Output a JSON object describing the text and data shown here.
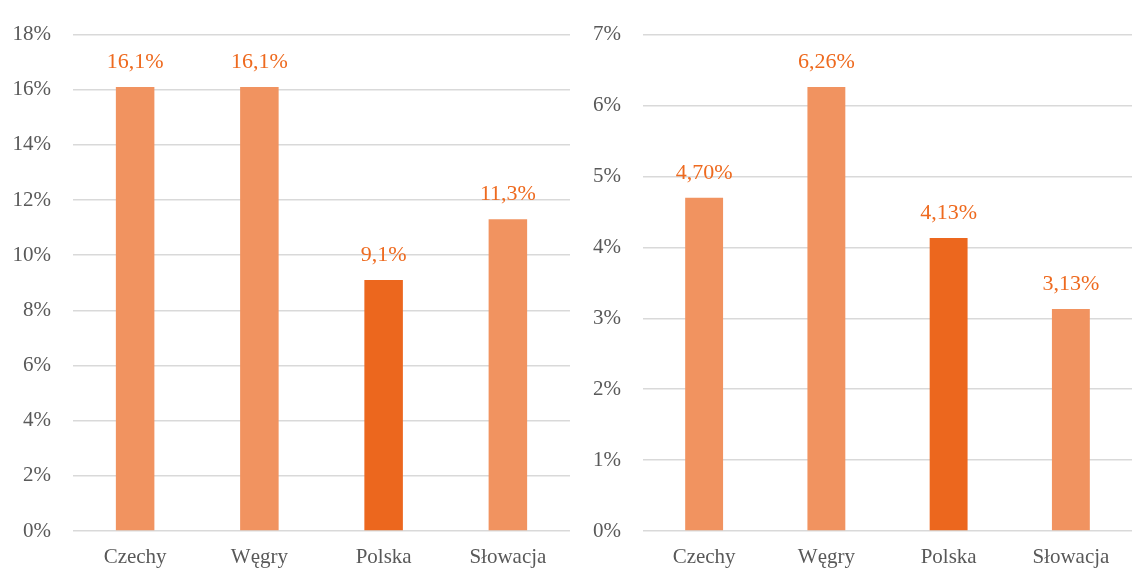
{
  "chart_data": [
    {
      "type": "bar",
      "categories": [
        "Czechy",
        "Węgry",
        "Polska",
        "Słowacja"
      ],
      "values": [
        16.1,
        16.1,
        9.1,
        11.3
      ],
      "colors": [
        "#f19360",
        "#f19360",
        "#ec671e",
        "#f19360"
      ],
      "value_labels": [
        "16,1%",
        "16,1%",
        "9,1%",
        "11,3%"
      ],
      "ylim": [
        0,
        18
      ],
      "yticks": [
        {
          "value": 0,
          "label": "0%"
        },
        {
          "value": 2,
          "label": "2%"
        },
        {
          "value": 4,
          "label": "4%"
        },
        {
          "value": 6,
          "label": "6%"
        },
        {
          "value": 8,
          "label": "8%"
        },
        {
          "value": 10,
          "label": "10%"
        },
        {
          "value": 12,
          "label": "12%"
        },
        {
          "value": 14,
          "label": "14%"
        },
        {
          "value": 16,
          "label": "16%"
        },
        {
          "value": 18,
          "label": "18%"
        }
      ],
      "grid": "y"
    },
    {
      "type": "bar",
      "categories": [
        "Czechy",
        "Węgry",
        "Polska",
        "Słowacja"
      ],
      "values": [
        4.7,
        6.26,
        4.13,
        3.13
      ],
      "colors": [
        "#f19360",
        "#f19360",
        "#ec671e",
        "#f19360"
      ],
      "value_labels": [
        "4,70%",
        "6,26%",
        "4,13%",
        "3,13%"
      ],
      "ylim": [
        0,
        7
      ],
      "yticks": [
        {
          "value": 0,
          "label": "0%"
        },
        {
          "value": 1,
          "label": "1%"
        },
        {
          "value": 2,
          "label": "2%"
        },
        {
          "value": 3,
          "label": "3%"
        },
        {
          "value": 4,
          "label": "4%"
        },
        {
          "value": 5,
          "label": "5%"
        },
        {
          "value": 6,
          "label": "6%"
        },
        {
          "value": 7,
          "label": "7%"
        }
      ],
      "grid": "y"
    }
  ]
}
